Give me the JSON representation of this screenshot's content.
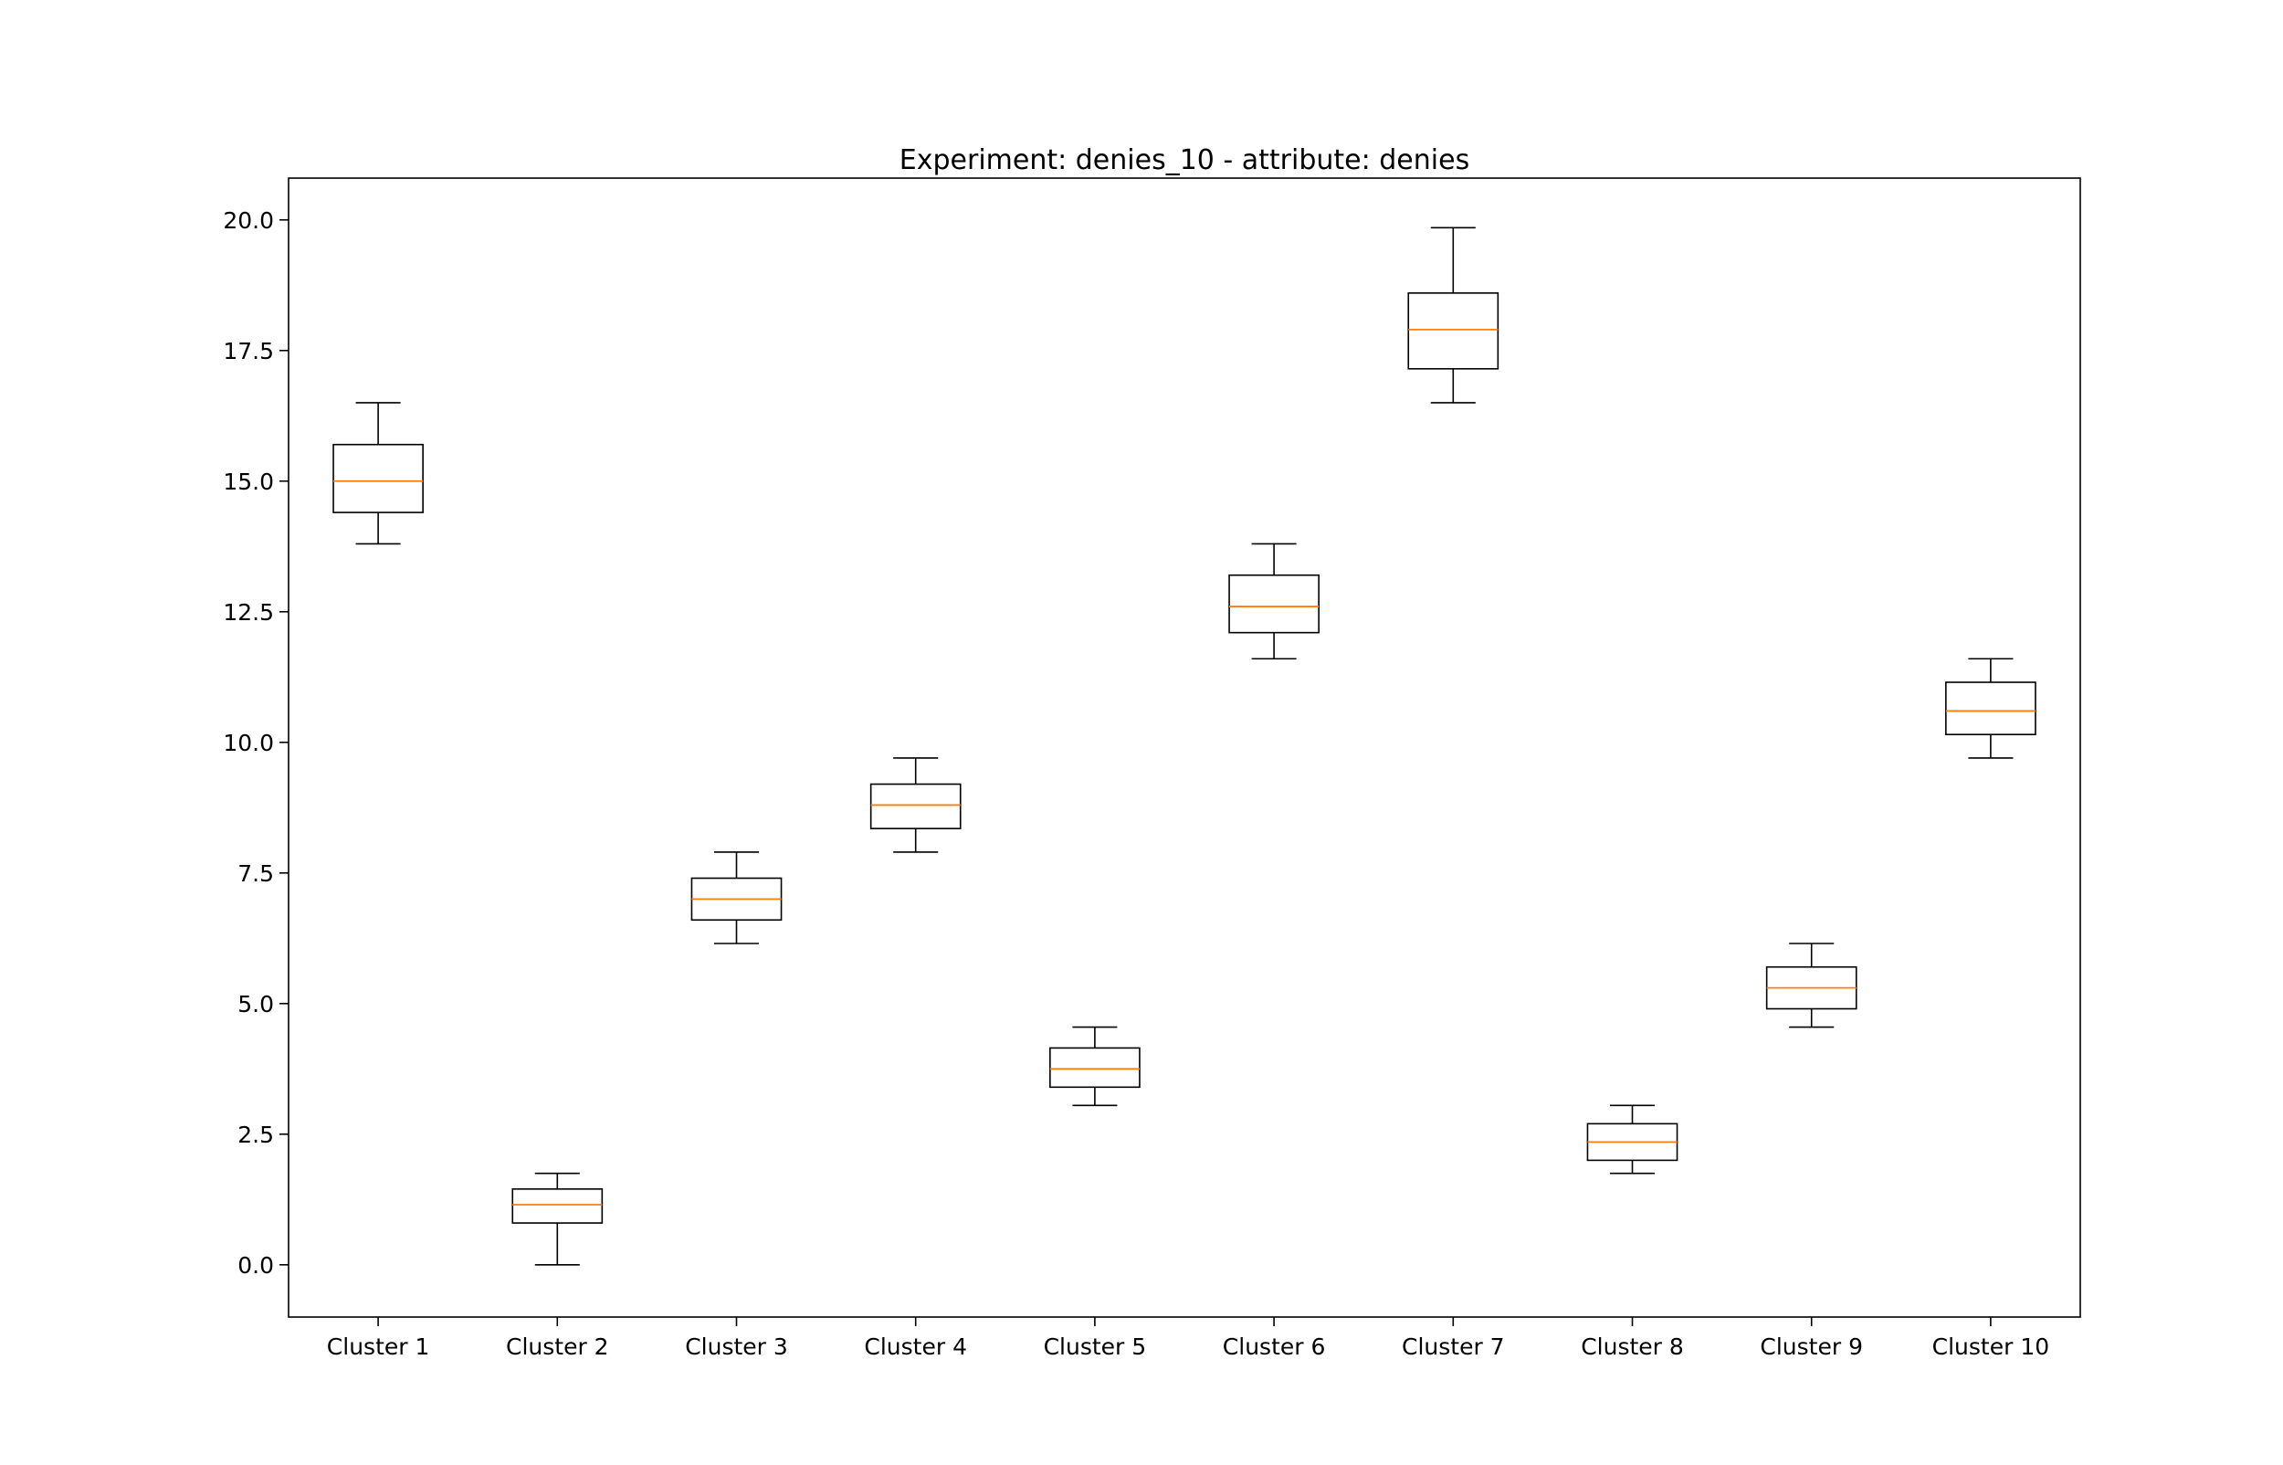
{
  "chart_data": {
    "type": "box",
    "title": "Experiment: denies_10 - attribute: denies",
    "xlabel": "",
    "ylabel": "",
    "ylim": [
      -1.0,
      20.8
    ],
    "yticks": [
      "0.0",
      "2.5",
      "5.0",
      "7.5",
      "10.0",
      "12.5",
      "15.0",
      "17.5",
      "20.0"
    ],
    "grid": false,
    "categories": [
      "Cluster 1",
      "Cluster 2",
      "Cluster 3",
      "Cluster 4",
      "Cluster 5",
      "Cluster 6",
      "Cluster 7",
      "Cluster 8",
      "Cluster 9",
      "Cluster 10"
    ],
    "series": [
      {
        "whisker_low": 13.8,
        "q1": 14.4,
        "median": 15.0,
        "q3": 15.7,
        "whisker_high": 16.5
      },
      {
        "whisker_low": 0.0,
        "q1": 0.8,
        "median": 1.15,
        "q3": 1.45,
        "whisker_high": 1.75
      },
      {
        "whisker_low": 6.15,
        "q1": 6.6,
        "median": 7.0,
        "q3": 7.4,
        "whisker_high": 7.9
      },
      {
        "whisker_low": 7.9,
        "q1": 8.35,
        "median": 8.8,
        "q3": 9.2,
        "whisker_high": 9.7
      },
      {
        "whisker_low": 3.05,
        "q1": 3.4,
        "median": 3.75,
        "q3": 4.15,
        "whisker_high": 4.55
      },
      {
        "whisker_low": 11.6,
        "q1": 12.1,
        "median": 12.6,
        "q3": 13.2,
        "whisker_high": 13.8
      },
      {
        "whisker_low": 16.5,
        "q1": 17.15,
        "median": 17.9,
        "q3": 18.6,
        "whisker_high": 19.85
      },
      {
        "whisker_low": 1.75,
        "q1": 2.0,
        "median": 2.35,
        "q3": 2.7,
        "whisker_high": 3.05
      },
      {
        "whisker_low": 4.55,
        "q1": 4.9,
        "median": 5.3,
        "q3": 5.7,
        "whisker_high": 6.15
      },
      {
        "whisker_low": 9.7,
        "q1": 10.15,
        "median": 10.6,
        "q3": 11.15,
        "whisker_high": 11.6
      }
    ],
    "colors": {
      "box": "#000000",
      "median": "#ff7f0e",
      "axes": "#000000",
      "background": "#ffffff"
    }
  }
}
